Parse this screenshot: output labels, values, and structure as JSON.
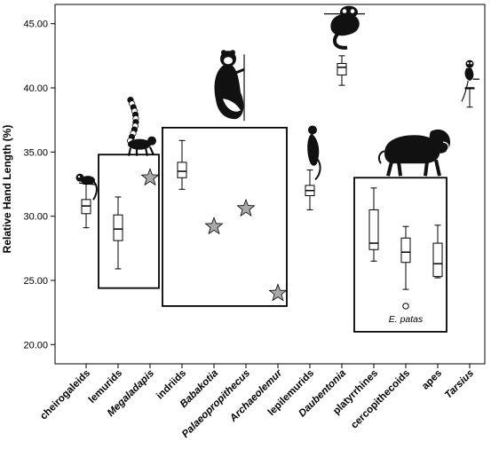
{
  "chart_data": {
    "type": "box",
    "ylabel": "Relative Hand Length (%)",
    "ylim": [
      18.5,
      46.5
    ],
    "yticks": [
      "20.00",
      "25.00",
      "30.00",
      "35.00",
      "40.00",
      "45.00"
    ],
    "grid": false,
    "categories": [
      {
        "label": "cheirogaleids",
        "italic": false
      },
      {
        "label": "lemurids",
        "italic": false
      },
      {
        "label": "Megaladapis",
        "italic": true
      },
      {
        "label": "indriids",
        "italic": false
      },
      {
        "label": "Babakotia",
        "italic": true
      },
      {
        "label": "Palaeopropithecus",
        "italic": true
      },
      {
        "label": "Archaeolemur",
        "italic": true
      },
      {
        "label": "lepilemurids",
        "italic": false
      },
      {
        "label": "Daubentonia",
        "italic": true
      },
      {
        "label": "platyrrhines",
        "italic": false
      },
      {
        "label": "cercopithecoids",
        "italic": false
      },
      {
        "label": "apes",
        "italic": false
      },
      {
        "label": "Tarsius",
        "italic": true
      }
    ],
    "boxes": [
      {
        "category": "cheirogaleids",
        "min": 29.1,
        "q1": 30.2,
        "median": 30.8,
        "q3": 31.3,
        "max": 32.5
      },
      {
        "category": "lemurids",
        "min": 25.9,
        "q1": 28.1,
        "median": 29.0,
        "q3": 30.1,
        "max": 31.5
      },
      {
        "category": "indriids",
        "min": 32.1,
        "q1": 33.0,
        "median": 33.5,
        "q3": 34.2,
        "max": 35.9
      },
      {
        "category": "lepilemurids",
        "min": 30.5,
        "q1": 31.6,
        "median": 32.0,
        "q3": 32.4,
        "max": 33.6
      },
      {
        "category": "Daubentonia",
        "min": 40.2,
        "q1": 41.0,
        "median": 41.6,
        "q3": 41.9,
        "max": 42.5
      },
      {
        "category": "platyrrhines",
        "min": 26.5,
        "q1": 27.4,
        "median": 27.9,
        "q3": 30.5,
        "max": 32.2
      },
      {
        "category": "cercopithecoids",
        "min": 24.3,
        "q1": 26.4,
        "median": 27.2,
        "q3": 28.3,
        "max": 29.2
      },
      {
        "category": "apes",
        "min": 25.2,
        "q1": 25.3,
        "median": 26.3,
        "q3": 27.9,
        "max": 29.3
      },
      {
        "category": "Tarsius",
        "min": 38.5,
        "q1": 40.0,
        "median": 40.0,
        "q3": 40.0,
        "max": 40.0
      }
    ],
    "fossil_points": [
      {
        "category": "Megaladapis",
        "value": 33.0
      },
      {
        "category": "Babakotia",
        "value": 29.2
      },
      {
        "category": "Palaeopropithecus",
        "value": 30.6
      },
      {
        "category": "Archaeolemur",
        "value": 24.0
      }
    ],
    "outliers": [
      {
        "category": "cercopithecoids",
        "value": 23.0,
        "label": "E. patas"
      }
    ],
    "group_frames": [
      {
        "from": "lemurids",
        "to": "Megaladapis",
        "top": 34.8,
        "bottom": 24.4
      },
      {
        "from": "indriids",
        "to": "Archaeolemur",
        "top": 36.9,
        "bottom": 23.0
      },
      {
        "from": "platyrrhines",
        "to": "apes",
        "top": 33.0,
        "bottom": 21.0
      }
    ],
    "silhouettes": [
      {
        "icon": "mouse-lemur-icon",
        "category": "cheirogaleids"
      },
      {
        "icon": "ring-tailed-lemur-icon",
        "category": "lemurids"
      },
      {
        "icon": "indri-icon",
        "category": "indriids"
      },
      {
        "icon": "sportive-lemur-icon",
        "category": "lepilemurids"
      },
      {
        "icon": "aye-aye-icon",
        "category": "Daubentonia"
      },
      {
        "icon": "baboon-icon",
        "category": "cercopithecoids"
      },
      {
        "icon": "tarsier-icon",
        "category": "Tarsius"
      }
    ],
    "colors": {
      "star_fill": "#a9a9a9",
      "line": "#000000",
      "background": "#ffffff"
    }
  }
}
